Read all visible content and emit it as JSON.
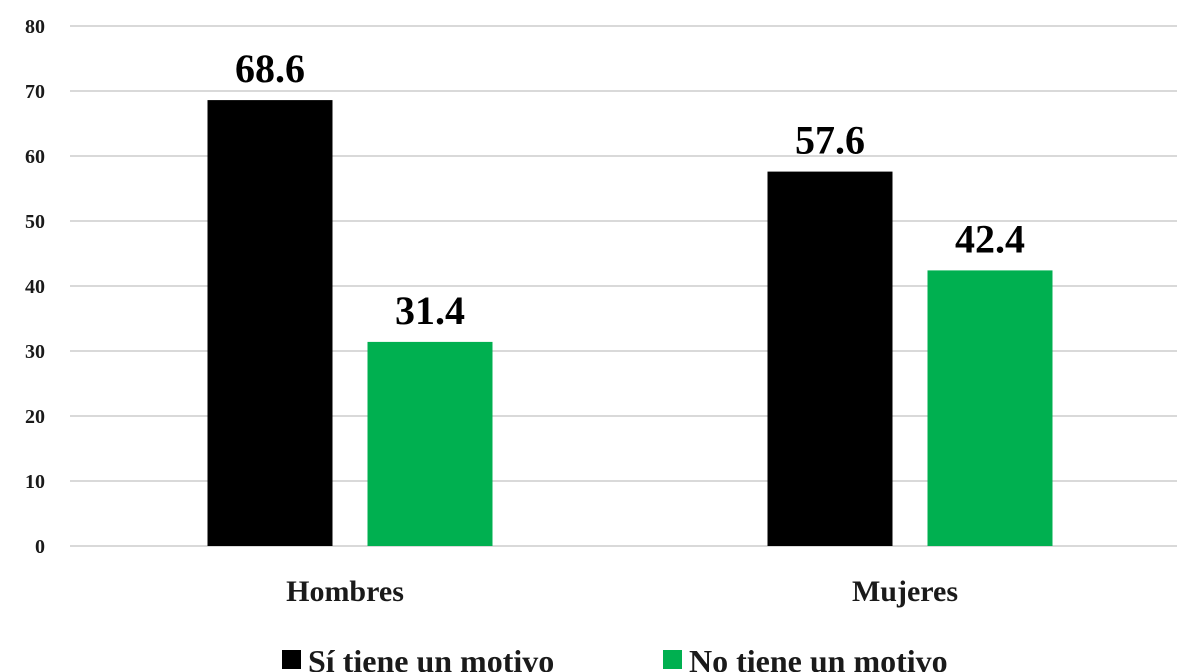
{
  "chart_data": {
    "type": "bar",
    "categories": [
      "Hombres",
      "Mujeres"
    ],
    "series": [
      {
        "name": "Sí tiene un motivo",
        "color": "#000000",
        "values": [
          68.6,
          57.6
        ],
        "labels": [
          "68.6",
          "57.6"
        ]
      },
      {
        "name": "No tiene un motivo",
        "color": "#00b050",
        "values": [
          31.4,
          42.4
        ],
        "labels": [
          "31.4",
          "42.4"
        ]
      }
    ],
    "ylim": [
      0,
      80
    ],
    "yticks": [
      "0",
      "10",
      "20",
      "30",
      "40",
      "50",
      "60",
      "70",
      "80"
    ],
    "grid": true,
    "legend_position": "bottom",
    "title": "",
    "xlabel": "",
    "ylabel": ""
  }
}
